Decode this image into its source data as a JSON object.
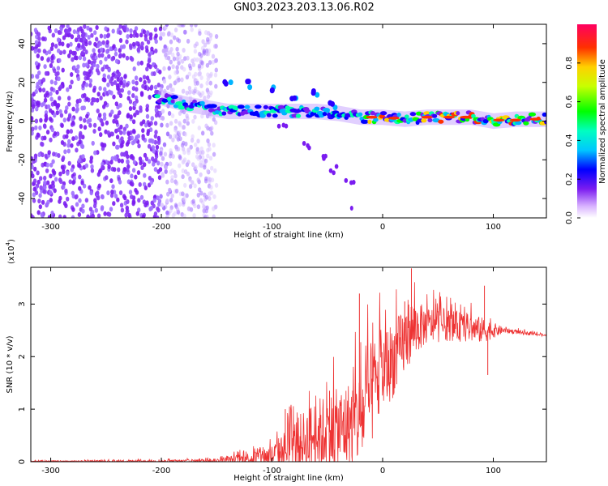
{
  "title": "GN03.2023.203.13.06.R02",
  "chart_data": [
    {
      "type": "heatmap",
      "xlabel": "Height of straight line (km)",
      "ylabel": "Frequency (Hz)",
      "xlim": [
        -318,
        148
      ],
      "ylim": [
        -50,
        50
      ],
      "xticks": [
        -300,
        -200,
        -100,
        0,
        100
      ],
      "yticks": [
        -40,
        -20,
        0,
        20,
        40
      ],
      "colorbar": {
        "label": "Normalized spectral amplitude",
        "range": [
          0,
          1
        ],
        "ticks": [
          0.0,
          0.2,
          0.4,
          0.6,
          0.8
        ],
        "tick_labels": [
          "0.0",
          "0.2",
          "0.4",
          "0.6",
          "0.8"
        ]
      },
      "features": {
        "noise_region_x": [
          -318,
          -150
        ],
        "main_band": [
          {
            "x": -200,
            "y": 12
          },
          {
            "x": -180,
            "y": 9
          },
          {
            "x": -160,
            "y": 7
          },
          {
            "x": -140,
            "y": 5
          },
          {
            "x": -120,
            "y": 5
          },
          {
            "x": -100,
            "y": 5
          },
          {
            "x": -80,
            "y": 5
          },
          {
            "x": -60,
            "y": 5
          },
          {
            "x": -40,
            "y": 4
          },
          {
            "x": -20,
            "y": 2
          },
          {
            "x": 0,
            "y": 2
          },
          {
            "x": 20,
            "y": 1
          },
          {
            "x": 40,
            "y": 2
          },
          {
            "x": 60,
            "y": 2
          },
          {
            "x": 80,
            "y": 2
          },
          {
            "x": 100,
            "y": 0
          },
          {
            "x": 120,
            "y": 1
          },
          {
            "x": 148,
            "y": 1
          }
        ],
        "upper_branch": [
          {
            "x": -140,
            "y": 20
          },
          {
            "x": -120,
            "y": 19
          },
          {
            "x": -100,
            "y": 17
          },
          {
            "x": -80,
            "y": 13
          },
          {
            "x": -60,
            "y": 15
          },
          {
            "x": -45,
            "y": 8
          }
        ],
        "lower_branch": [
          {
            "x": -90,
            "y": -2
          },
          {
            "x": -70,
            "y": -12
          },
          {
            "x": -55,
            "y": -18
          },
          {
            "x": -45,
            "y": -25
          },
          {
            "x": -30,
            "y": -32
          }
        ]
      }
    },
    {
      "type": "line",
      "xlabel": "Height of straight line (km)",
      "ylabel": "SNR (10 * v/v)",
      "y_scale_note": "(x10",
      "y_scale_exp": "4",
      "xlim": [
        -318,
        148
      ],
      "ylim": [
        0,
        3.7
      ],
      "xticks": [
        -300,
        -200,
        -100,
        0,
        100
      ],
      "yticks": [
        0,
        1,
        2,
        3
      ],
      "color": "#ee3333",
      "envelope": [
        {
          "x": -318,
          "base": 0.01,
          "amp": 0.01
        },
        {
          "x": -200,
          "base": 0.01,
          "amp": 0.02
        },
        {
          "x": -150,
          "base": 0.02,
          "amp": 0.04
        },
        {
          "x": -120,
          "base": 0.06,
          "amp": 0.12
        },
        {
          "x": -100,
          "base": 0.12,
          "amp": 0.2
        },
        {
          "x": -80,
          "base": 0.3,
          "amp": 0.5
        },
        {
          "x": -60,
          "base": 0.5,
          "amp": 0.7
        },
        {
          "x": -40,
          "base": 0.6,
          "amp": 0.8
        },
        {
          "x": -20,
          "base": 0.8,
          "amp": 0.9
        },
        {
          "x": -10,
          "base": 1.3,
          "amp": 1.0
        },
        {
          "x": 0,
          "base": 1.7,
          "amp": 0.8
        },
        {
          "x": 15,
          "base": 2.1,
          "amp": 0.7
        },
        {
          "x": 25,
          "base": 2.5,
          "amp": 0.6
        },
        {
          "x": 40,
          "base": 2.6,
          "amp": 0.35
        },
        {
          "x": 60,
          "base": 2.6,
          "amp": 0.3
        },
        {
          "x": 90,
          "base": 2.5,
          "amp": 0.25
        },
        {
          "x": 110,
          "base": 2.5,
          "amp": 0.05
        },
        {
          "x": 148,
          "base": 2.4,
          "amp": 0.02
        }
      ],
      "peaks": [
        {
          "x": -88,
          "y": 1.0
        },
        {
          "x": -48,
          "y": 1.35
        },
        {
          "x": -21,
          "y": 3.2
        },
        {
          "x": 20,
          "y": 3.05
        },
        {
          "x": 26,
          "y": 3.68
        },
        {
          "x": 48,
          "y": 3.0
        },
        {
          "x": 92,
          "y": 3.35
        },
        {
          "x": 95,
          "y": 1.65
        }
      ]
    }
  ]
}
